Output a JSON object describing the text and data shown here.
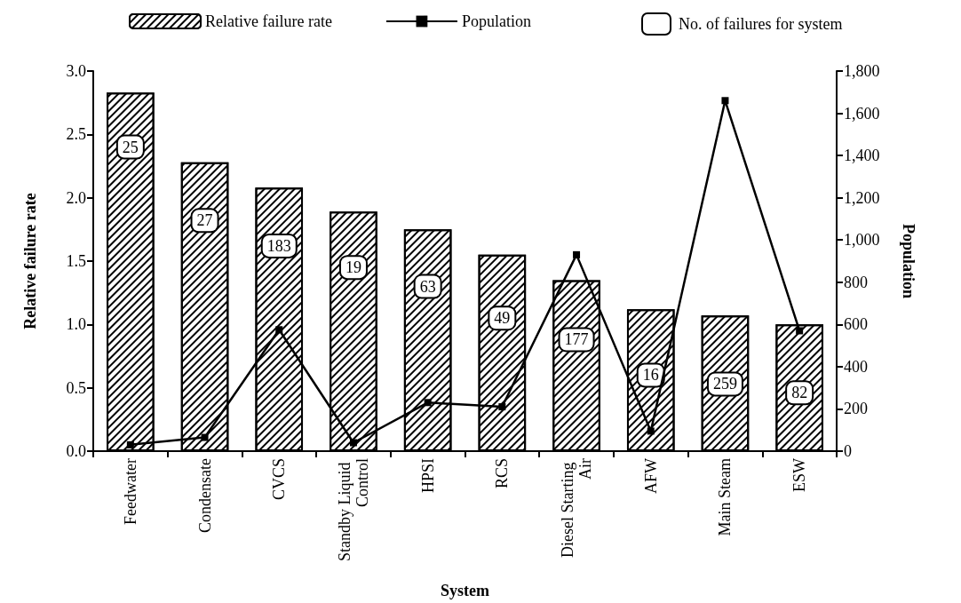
{
  "chart_data": {
    "type": "bar",
    "xlabel": "System",
    "ylabel": "Relative failure rate",
    "y2label": "Population",
    "categories": [
      "Feedwater",
      "Condensate",
      "CVCS",
      "Standby Liquid Control",
      "HPSI",
      "RCS",
      "Diesel Starting Air",
      "AFW",
      "Main Steam",
      "ESW"
    ],
    "series": [
      {
        "name": "Relative failure rate",
        "color": "#000000",
        "values": [
          2.83,
          2.28,
          2.08,
          1.89,
          1.75,
          1.55,
          1.35,
          1.12,
          1.07,
          1.0
        ]
      },
      {
        "name": "Population",
        "type": "line",
        "axis": "y2",
        "color": "#000000",
        "marker": "square",
        "values": [
          30,
          65,
          575,
          40,
          230,
          210,
          930,
          95,
          1660,
          570
        ]
      }
    ],
    "annotations": [
      "No. of failures for system",
      {
        "text": "25",
        "x": "Feedwater",
        "y": 2.4
      },
      {
        "text": "27",
        "x": "Condensate",
        "y": 1.82
      },
      {
        "text": "183",
        "x": "CVCS",
        "y": 1.62
      },
      {
        "text": "19",
        "x": "Standby Liquid Control",
        "y": 1.45
      },
      {
        "text": "63",
        "x": "HPSI",
        "y": 1.3
      },
      {
        "text": "49",
        "x": "RCS",
        "y": 1.05
      },
      {
        "text": "177",
        "x": "Diesel Starting Air",
        "y": 0.88
      },
      {
        "text": "16",
        "x": "AFW",
        "y": 0.6
      },
      {
        "text": "259",
        "x": "Main Steam",
        "y": 0.53
      },
      {
        "text": "82",
        "x": "ESW",
        "y": 0.46
      }
    ],
    "ylim": [
      0,
      3
    ],
    "yticks": [
      {
        "value": 0,
        "label": "0.0"
      },
      0.5,
      {
        "value": 1,
        "label": "1.0"
      },
      1.5,
      {
        "value": 2,
        "label": "2.0"
      },
      2.5,
      {
        "value": 3,
        "label": "3.0"
      }
    ],
    "y2lim": [
      0,
      1800
    ],
    "y2ticks": [
      0,
      200,
      400,
      600,
      800,
      {
        "value": 1000,
        "label": "1,000"
      },
      {
        "value": 1200,
        "label": "1,200"
      },
      {
        "value": 1400,
        "label": "1,400"
      },
      {
        "value": 1600,
        "label": "1,600"
      },
      {
        "value": 1800,
        "label": "1,800"
      }
    ],
    "legend": "top",
    "grid": false
  }
}
